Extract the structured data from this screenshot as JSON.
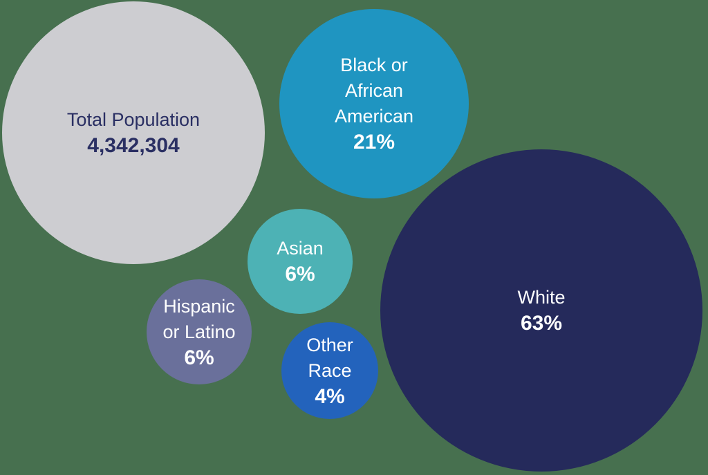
{
  "chart_data": {
    "type": "bubble",
    "legend": "none",
    "axes": "none",
    "background_color": "#47704F",
    "bubbles": [
      {
        "label": "Total Population",
        "value": 4342304,
        "value_display": "4,342,304",
        "color": "#CDCDD1",
        "text_color": "#2A2F63",
        "relative_size": "largest-left"
      },
      {
        "label": "Black or African American",
        "value_pct": 21,
        "value_display": "21%",
        "color": "#1F95C1",
        "text_color": "#FFFFFF",
        "relative_size": "medium"
      },
      {
        "label": "White",
        "value_pct": 63,
        "value_display": "63%",
        "color": "#252A5B",
        "text_color": "#FFFFFF",
        "relative_size": "largest-right"
      },
      {
        "label": "Asian",
        "value_pct": 6,
        "value_display": "6%",
        "color": "#4DB2B5",
        "text_color": "#FFFFFF",
        "relative_size": "small"
      },
      {
        "label": "Hispanic or Latino",
        "value_pct": 6,
        "value_display": "6%",
        "color": "#6A709B",
        "text_color": "#FFFFFF",
        "relative_size": "small"
      },
      {
        "label": "Other Race",
        "value_pct": 4,
        "value_display": "4%",
        "color": "#2363BC",
        "text_color": "#FFFFFF",
        "relative_size": "smallest"
      }
    ]
  },
  "bubbles": {
    "total": {
      "line1": "Total Population",
      "value": "4,342,304"
    },
    "black": {
      "line1": "Black or",
      "line2": "African",
      "line3": "American",
      "value": "21%"
    },
    "white": {
      "line1": "White",
      "value": "63%"
    },
    "asian": {
      "line1": "Asian",
      "value": "6%"
    },
    "hispanic": {
      "line1": "Hispanic",
      "line2": "or Latino",
      "value": "6%"
    },
    "other": {
      "line1": "Other",
      "line2": "Race",
      "value": "4%"
    }
  }
}
